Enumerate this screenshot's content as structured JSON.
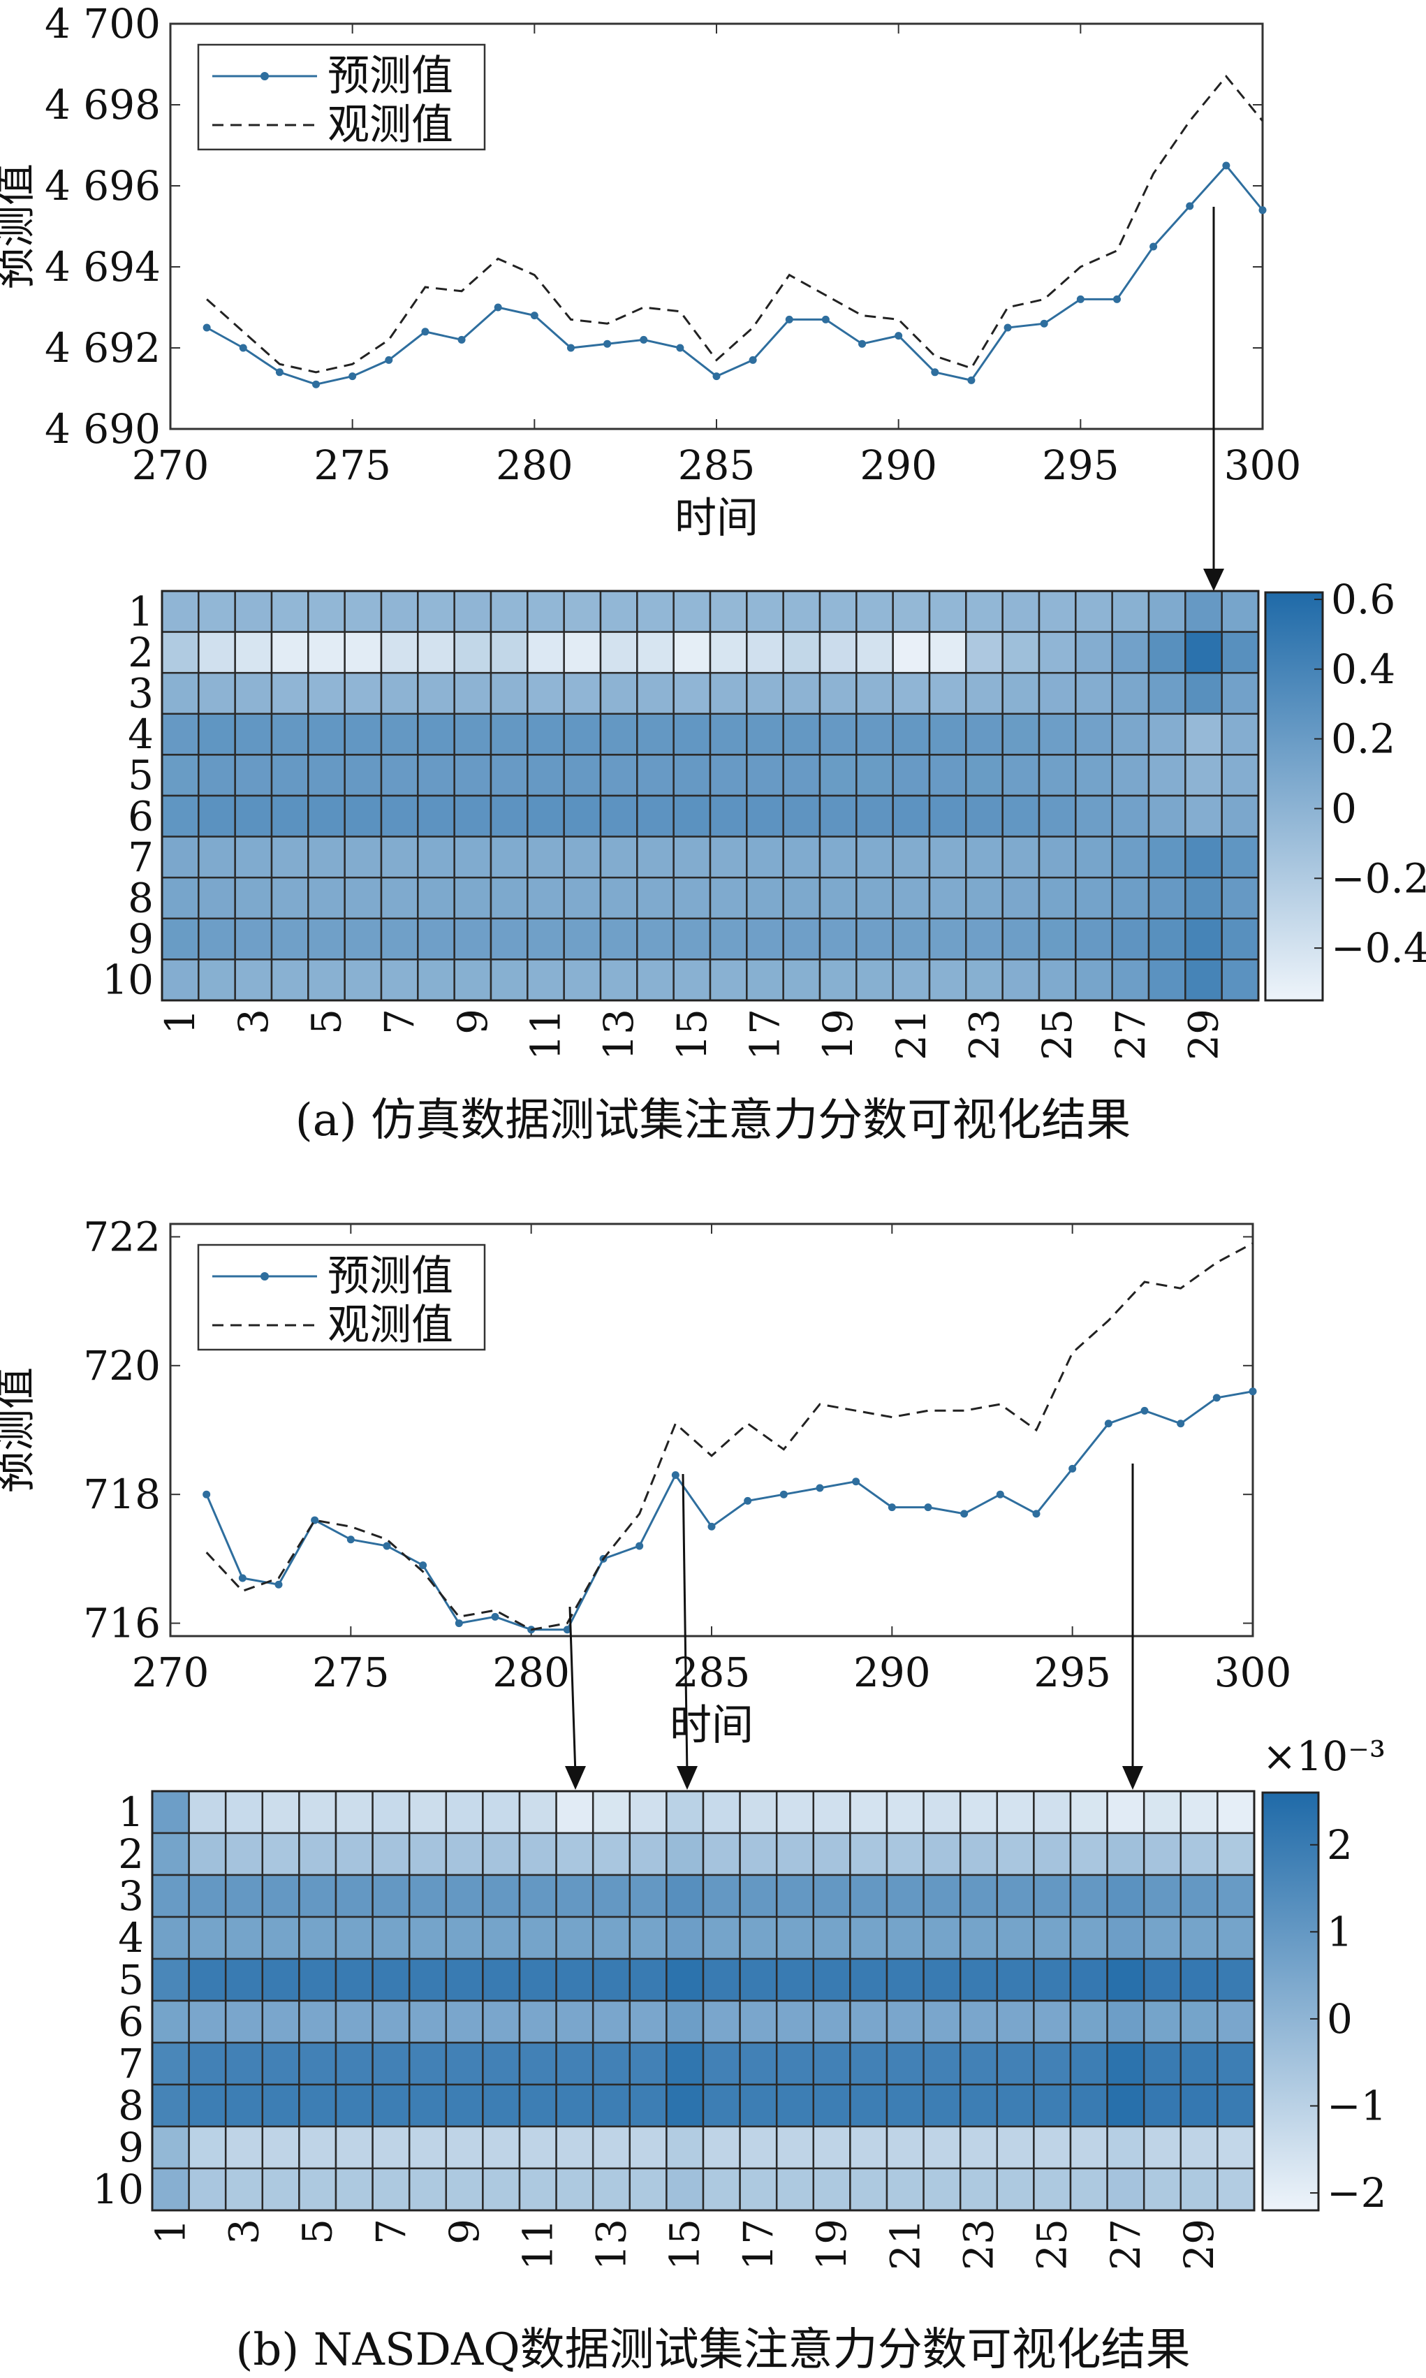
{
  "chart_data": [
    {
      "type": "line",
      "panel": "a",
      "xlabel": "时间",
      "ylabel": "预测值",
      "xlim": [
        270,
        300
      ],
      "ylim": [
        4690,
        4700
      ],
      "xticks": [
        270,
        275,
        280,
        285,
        290,
        295,
        300
      ],
      "xtick_labels": [
        "270",
        "275",
        "280",
        "285",
        "290",
        "295",
        "300"
      ],
      "yticks": [
        4690,
        4692,
        4694,
        4696,
        4698,
        4700
      ],
      "ytick_labels": [
        "4 690",
        "4 692",
        "4 694",
        "4 696",
        "4 698",
        "4 700"
      ],
      "legend_position": "top-left",
      "x": [
        271,
        272,
        273,
        274,
        275,
        276,
        277,
        278,
        279,
        280,
        281,
        282,
        283,
        284,
        285,
        286,
        287,
        288,
        289,
        290,
        291,
        292,
        293,
        294,
        295,
        296,
        297,
        298,
        299,
        300
      ],
      "series": [
        {
          "name": "预测值",
          "style": "solid-dot",
          "color": "#2e6e9e",
          "values": [
            4692.5,
            4692.0,
            4691.4,
            4691.1,
            4691.3,
            4691.7,
            4692.4,
            4692.2,
            4693.0,
            4692.8,
            4692.0,
            4692.1,
            4692.2,
            4692.0,
            4691.3,
            4691.7,
            4692.7,
            4692.7,
            4692.1,
            4692.3,
            4691.4,
            4691.2,
            4692.5,
            4692.6,
            4693.2,
            4693.2,
            4694.5,
            4695.5,
            4696.5,
            4695.4
          ]
        },
        {
          "name": "观测值",
          "style": "dashed",
          "color": "#222222",
          "values": [
            4693.2,
            4692.4,
            4691.6,
            4691.4,
            4691.6,
            4692.2,
            4693.5,
            4693.4,
            4694.2,
            4693.8,
            4692.7,
            4692.6,
            4693.0,
            4692.9,
            4691.7,
            4692.5,
            4693.8,
            4693.3,
            4692.8,
            4692.7,
            4691.8,
            4691.5,
            4693.0,
            4693.2,
            4694.0,
            4694.4,
            4696.3,
            4697.6,
            4698.7,
            4697.6
          ]
        }
      ]
    },
    {
      "type": "heatmap",
      "panel": "a",
      "rows": [
        "1",
        "2",
        "3",
        "4",
        "5",
        "6",
        "7",
        "8",
        "9",
        "10"
      ],
      "columns": 30,
      "xtick_labels": [
        "1",
        "3",
        "5",
        "7",
        "9",
        "11",
        "13",
        "15",
        "17",
        "19",
        "21",
        "23",
        "25",
        "27",
        "29"
      ],
      "colorbar_range": [
        -0.55,
        0.62
      ],
      "colorbar_ticks": [
        0.6,
        0.4,
        0.2,
        0,
        -0.2,
        -0.4
      ],
      "colorbar_tick_labels": [
        "0.6",
        "0.4",
        "0.2",
        "0",
        "−0.2",
        "−0.4"
      ],
      "colorscale": [
        "#eef4fa",
        "#1f6aa8"
      ],
      "row_values": [
        [
          -0.02,
          -0.03,
          -0.02,
          -0.03,
          -0.03,
          -0.03,
          -0.02,
          -0.03,
          -0.02,
          -0.03,
          -0.03,
          -0.04,
          -0.03,
          -0.03,
          -0.03,
          -0.04,
          -0.03,
          -0.03,
          -0.03,
          -0.03,
          -0.04,
          -0.03,
          -0.03,
          -0.02,
          -0.02,
          -0.01,
          0.02,
          0.08,
          0.22,
          0.12
        ],
        [
          -0.2,
          -0.38,
          -0.42,
          -0.48,
          -0.48,
          -0.48,
          -0.4,
          -0.4,
          -0.3,
          -0.3,
          -0.45,
          -0.48,
          -0.4,
          -0.42,
          -0.5,
          -0.42,
          -0.38,
          -0.3,
          -0.35,
          -0.4,
          -0.52,
          -0.48,
          -0.18,
          -0.1,
          -0.02,
          0.05,
          0.15,
          0.3,
          0.55,
          0.3
        ],
        [
          0.02,
          0.0,
          0.0,
          -0.02,
          -0.02,
          -0.02,
          0.0,
          0.0,
          0.0,
          0.0,
          -0.02,
          -0.02,
          0.0,
          0.0,
          -0.02,
          0.0,
          0.0,
          0.0,
          0.0,
          0.0,
          -0.02,
          -0.02,
          0.0,
          0.02,
          0.04,
          0.05,
          0.1,
          0.18,
          0.3,
          0.15
        ],
        [
          0.22,
          0.25,
          0.24,
          0.23,
          0.24,
          0.24,
          0.23,
          0.24,
          0.23,
          0.23,
          0.24,
          0.24,
          0.23,
          0.23,
          0.24,
          0.23,
          0.23,
          0.23,
          0.22,
          0.22,
          0.23,
          0.23,
          0.22,
          0.2,
          0.18,
          0.15,
          0.1,
          0.05,
          -0.05,
          0.05
        ],
        [
          0.2,
          0.22,
          0.21,
          0.22,
          0.22,
          0.22,
          0.21,
          0.21,
          0.21,
          0.21,
          0.22,
          0.22,
          0.21,
          0.21,
          0.22,
          0.21,
          0.21,
          0.21,
          0.2,
          0.2,
          0.21,
          0.21,
          0.2,
          0.18,
          0.16,
          0.14,
          0.1,
          0.05,
          0.0,
          0.05
        ],
        [
          0.25,
          0.28,
          0.28,
          0.28,
          0.28,
          0.28,
          0.27,
          0.27,
          0.27,
          0.27,
          0.28,
          0.28,
          0.27,
          0.27,
          0.28,
          0.27,
          0.27,
          0.26,
          0.26,
          0.26,
          0.27,
          0.27,
          0.26,
          0.24,
          0.22,
          0.18,
          0.15,
          0.1,
          0.05,
          0.1
        ],
        [
          0.1,
          0.08,
          0.07,
          0.06,
          0.06,
          0.06,
          0.06,
          0.07,
          0.07,
          0.07,
          0.06,
          0.06,
          0.06,
          0.06,
          0.06,
          0.06,
          0.07,
          0.07,
          0.07,
          0.07,
          0.06,
          0.06,
          0.07,
          0.08,
          0.1,
          0.12,
          0.18,
          0.25,
          0.35,
          0.25
        ],
        [
          0.12,
          0.1,
          0.09,
          0.08,
          0.08,
          0.08,
          0.08,
          0.09,
          0.09,
          0.09,
          0.08,
          0.08,
          0.08,
          0.08,
          0.08,
          0.08,
          0.09,
          0.09,
          0.09,
          0.09,
          0.08,
          0.08,
          0.09,
          0.1,
          0.12,
          0.14,
          0.18,
          0.22,
          0.3,
          0.22
        ],
        [
          0.2,
          0.18,
          0.17,
          0.16,
          0.16,
          0.16,
          0.16,
          0.17,
          0.17,
          0.17,
          0.16,
          0.16,
          0.16,
          0.16,
          0.16,
          0.16,
          0.17,
          0.17,
          0.17,
          0.17,
          0.16,
          0.16,
          0.17,
          0.18,
          0.2,
          0.22,
          0.26,
          0.3,
          0.4,
          0.3
        ],
        [
          0.05,
          0.03,
          0.02,
          0.02,
          0.02,
          0.02,
          0.02,
          0.03,
          0.03,
          0.03,
          0.02,
          0.02,
          0.02,
          0.02,
          0.02,
          0.02,
          0.03,
          0.03,
          0.03,
          0.03,
          0.02,
          0.02,
          0.03,
          0.05,
          0.08,
          0.12,
          0.18,
          0.28,
          0.4,
          0.28
        ]
      ]
    },
    {
      "type": "line",
      "panel": "b",
      "xlabel": "时间",
      "ylabel": "预测值",
      "xlim": [
        270,
        300
      ],
      "ylim": [
        715.8,
        722.2
      ],
      "xticks": [
        270,
        275,
        280,
        285,
        290,
        295,
        300
      ],
      "xtick_labels": [
        "270",
        "275",
        "280",
        "285",
        "290",
        "295",
        "300"
      ],
      "yticks": [
        716,
        718,
        720,
        722
      ],
      "ytick_labels": [
        "716",
        "718",
        "720",
        "722"
      ],
      "legend_position": "top-left",
      "x": [
        271,
        272,
        273,
        274,
        275,
        276,
        277,
        278,
        279,
        280,
        281,
        282,
        283,
        284,
        285,
        286,
        287,
        288,
        289,
        290,
        291,
        292,
        293,
        294,
        295,
        296,
        297,
        298,
        299,
        300
      ],
      "series": [
        {
          "name": "预测值",
          "style": "solid-dot",
          "color": "#2e6e9e",
          "values": [
            718.0,
            716.7,
            716.6,
            717.6,
            717.3,
            717.2,
            716.9,
            716.0,
            716.1,
            715.9,
            715.9,
            717.0,
            717.2,
            718.3,
            717.5,
            717.9,
            718.0,
            718.1,
            718.2,
            717.8,
            717.8,
            717.7,
            718.0,
            717.7,
            718.4,
            719.1,
            719.3,
            719.1,
            719.5,
            719.6
          ]
        },
        {
          "name": "观测值",
          "style": "dashed",
          "color": "#222222",
          "values": [
            717.1,
            716.5,
            716.7,
            717.6,
            717.5,
            717.3,
            716.8,
            716.1,
            716.2,
            715.9,
            716.0,
            717.0,
            717.7,
            719.1,
            718.6,
            719.1,
            718.7,
            719.4,
            719.3,
            719.2,
            719.3,
            719.3,
            719.4,
            719.0,
            720.2,
            720.7,
            721.3,
            721.2,
            721.6,
            721.9
          ]
        }
      ]
    },
    {
      "type": "heatmap",
      "panel": "b",
      "rows": [
        "1",
        "2",
        "3",
        "4",
        "5",
        "6",
        "7",
        "8",
        "9",
        "10"
      ],
      "columns": 30,
      "xtick_labels": [
        "1",
        "3",
        "5",
        "7",
        "9",
        "11",
        "13",
        "15",
        "17",
        "19",
        "21",
        "23",
        "25",
        "27",
        "29"
      ],
      "colorbar_multiplier": "×10⁻³",
      "colorbar_range": [
        -2.2,
        2.6
      ],
      "colorbar_ticks": [
        2,
        1,
        0,
        -1,
        -2
      ],
      "colorbar_tick_labels": [
        "2",
        "1",
        "0",
        "−1",
        "−2"
      ],
      "colorscale": [
        "#eef4fa",
        "#1f6aa8"
      ],
      "row_values": [
        [
          0.8,
          -1.2,
          -1.3,
          -1.4,
          -1.4,
          -1.4,
          -1.3,
          -1.4,
          -1.3,
          -1.3,
          -1.4,
          -1.9,
          -1.7,
          -1.5,
          -1.0,
          -1.3,
          -1.4,
          -1.5,
          -1.5,
          -1.6,
          -1.6,
          -1.5,
          -1.6,
          -1.6,
          -1.5,
          -1.7,
          -1.9,
          -1.7,
          -1.8,
          -2.0
        ],
        [
          0.6,
          -0.4,
          -0.5,
          -0.6,
          -0.5,
          -0.5,
          -0.5,
          -0.5,
          -0.5,
          -0.5,
          -0.5,
          -0.6,
          -0.6,
          -0.5,
          -0.2,
          -0.5,
          -0.5,
          -0.5,
          -0.5,
          -0.6,
          -0.6,
          -0.5,
          -0.5,
          -0.6,
          -0.5,
          -0.6,
          -0.4,
          -0.5,
          -0.6,
          -0.7
        ],
        [
          0.9,
          1.0,
          1.0,
          1.0,
          1.0,
          1.0,
          1.0,
          1.0,
          1.0,
          1.0,
          1.0,
          1.0,
          1.0,
          1.0,
          1.3,
          1.0,
          1.0,
          1.0,
          1.0,
          1.0,
          1.0,
          1.0,
          1.0,
          1.0,
          1.0,
          1.0,
          1.2,
          1.0,
          1.0,
          0.9
        ],
        [
          0.7,
          0.6,
          0.6,
          0.6,
          0.6,
          0.6,
          0.6,
          0.6,
          0.6,
          0.6,
          0.6,
          0.6,
          0.6,
          0.6,
          0.8,
          0.6,
          0.6,
          0.6,
          0.6,
          0.6,
          0.6,
          0.6,
          0.6,
          0.6,
          0.6,
          0.6,
          0.8,
          0.6,
          0.6,
          0.6
        ],
        [
          1.6,
          2.0,
          2.0,
          2.0,
          2.0,
          2.0,
          2.0,
          2.0,
          2.0,
          2.0,
          2.0,
          2.0,
          2.0,
          2.0,
          2.3,
          2.0,
          2.0,
          2.0,
          2.0,
          2.0,
          2.0,
          2.0,
          2.0,
          2.0,
          2.0,
          2.1,
          2.4,
          2.1,
          2.1,
          2.0
        ],
        [
          0.6,
          0.5,
          0.5,
          0.5,
          0.5,
          0.5,
          0.5,
          0.5,
          0.5,
          0.5,
          0.5,
          0.5,
          0.5,
          0.5,
          0.8,
          0.5,
          0.5,
          0.5,
          0.5,
          0.5,
          0.5,
          0.5,
          0.5,
          0.5,
          0.5,
          0.6,
          0.8,
          0.6,
          0.6,
          0.5
        ],
        [
          1.6,
          1.8,
          1.8,
          1.8,
          1.8,
          1.8,
          1.8,
          1.8,
          1.8,
          1.8,
          1.8,
          1.8,
          1.8,
          1.8,
          2.2,
          1.8,
          1.8,
          1.8,
          1.8,
          1.8,
          1.8,
          1.8,
          1.8,
          1.8,
          1.8,
          1.9,
          2.3,
          2.0,
          2.0,
          1.9
        ],
        [
          1.7,
          1.9,
          1.9,
          1.9,
          1.9,
          1.9,
          1.9,
          1.9,
          1.9,
          1.9,
          1.9,
          1.9,
          1.9,
          1.9,
          2.3,
          1.9,
          1.9,
          1.9,
          1.9,
          1.9,
          1.9,
          1.9,
          1.9,
          1.9,
          1.9,
          2.0,
          2.4,
          2.1,
          2.1,
          2.0
        ],
        [
          -0.1,
          -1.0,
          -1.1,
          -1.1,
          -1.1,
          -1.1,
          -1.1,
          -1.1,
          -1.1,
          -1.1,
          -1.1,
          -1.1,
          -1.1,
          -1.1,
          -0.8,
          -1.1,
          -1.1,
          -1.1,
          -1.1,
          -1.1,
          -1.1,
          -1.1,
          -1.1,
          -1.1,
          -1.1,
          -1.1,
          -0.9,
          -1.1,
          -1.1,
          -1.2
        ],
        [
          0.2,
          -0.6,
          -0.7,
          -0.7,
          -0.7,
          -0.7,
          -0.7,
          -0.7,
          -0.7,
          -0.7,
          -0.7,
          -0.7,
          -0.7,
          -0.7,
          -0.4,
          -0.7,
          -0.7,
          -0.7,
          -0.7,
          -0.7,
          -0.7,
          -0.7,
          -0.7,
          -0.7,
          -0.7,
          -0.7,
          -0.5,
          -0.7,
          -0.7,
          -0.8
        ]
      ]
    }
  ],
  "captions": {
    "a": "(a) 仿真数据测试集注意力分数可视化结果",
    "b": "(b) NASDAQ数据测试集注意力分数可视化结果"
  }
}
